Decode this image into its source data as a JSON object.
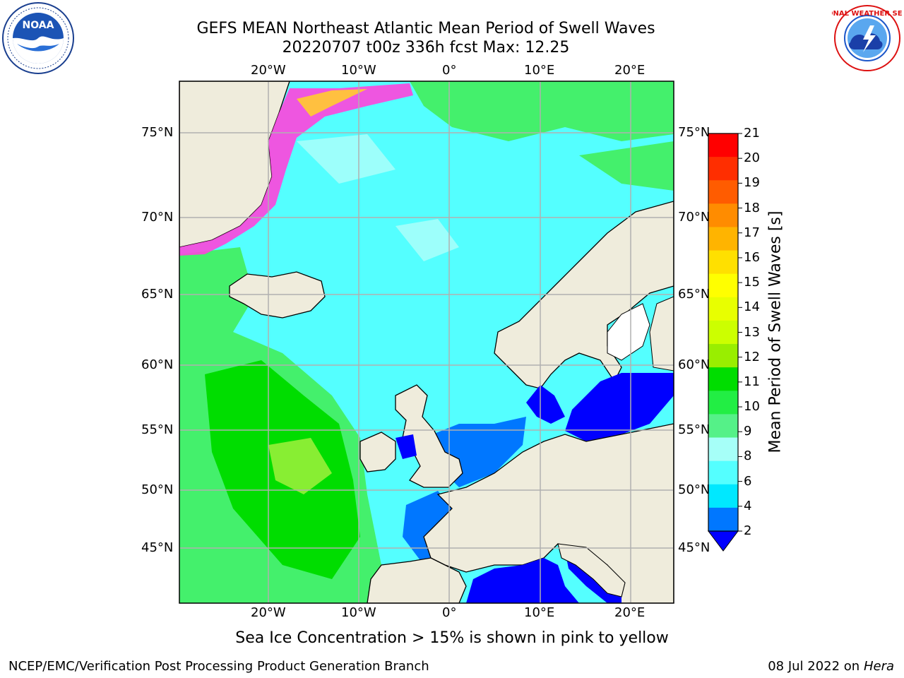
{
  "title": {
    "line1": "GEFS MEAN Northeast Atlantic Mean Period of Swell Waves",
    "line2": "20220707 t00z 336h fcst   Max: 12.25"
  },
  "logos": {
    "left_text": "NOAA",
    "right_text": "NATIONAL WEATHER SERVICE"
  },
  "map": {
    "lon_labels_top": [
      "20°W",
      "10°W",
      "0°",
      "10°E",
      "20°E"
    ],
    "lon_labels_bottom": [
      "20°W",
      "10°W",
      "0°",
      "10°E",
      "20°E"
    ],
    "lat_labels_left": [
      "75°N",
      "70°N",
      "65°N",
      "60°N",
      "55°N",
      "50°N",
      "45°N"
    ],
    "lat_labels_right": [
      "75°N",
      "70°N",
      "65°N",
      "60°N",
      "55°N",
      "50°N",
      "45°N"
    ],
    "land_color": "#efecdc",
    "ocean_colors": {
      "dark_blue": "#0000ff",
      "blue": "#0077ff",
      "cyan": "#00e8ff",
      "light_cyan": "#46ffff",
      "pale": "#9dfffb",
      "light_green": "#44f06c",
      "green": "#00dd00"
    }
  },
  "colorbar": {
    "label": "Mean Period of Swell Waves [s]",
    "ticks": [
      "21",
      "20",
      "19",
      "18",
      "17",
      "16",
      "15",
      "14",
      "13",
      "12",
      "11",
      "10",
      "9",
      "8",
      "6",
      "4",
      "2"
    ],
    "colors_top_to_bottom": [
      "#ff0000",
      "#ff2e00",
      "#ff5c00",
      "#ff8c00",
      "#ffb400",
      "#ffe000",
      "#ffff00",
      "#e8ff00",
      "#ccff00",
      "#99ee00",
      "#00dd00",
      "#22ee44",
      "#55f188",
      "#a6fff8",
      "#54ffff",
      "#00e8ff",
      "#0077ff"
    ],
    "extend_color": "#0000ff"
  },
  "note": "Sea Ice Concentration > 15% is shown in pink to yellow",
  "footer": {
    "left": "NCEP/EMC/Verification Post Processing Product Generation Branch",
    "right_prefix": "08 Jul 2022 on ",
    "right_italic": "Hera"
  }
}
